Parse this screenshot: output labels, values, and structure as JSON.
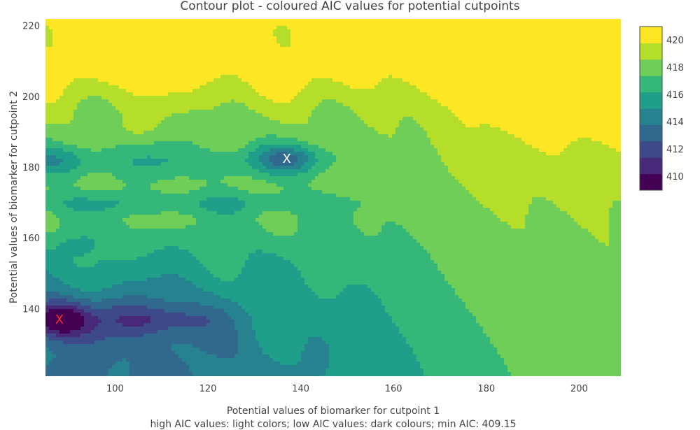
{
  "chart_data": {
    "type": "contour",
    "title": "Contour plot - coloured AIC values for potential cutpoints",
    "xlabel": "Potential values of biomarker for cutpoint 1",
    "subtitle": "high AIC values: light colors; low AIC values: dark colours; min AIC: 409.15",
    "ylabel": "Potential values of biomarker for cutpoint 2",
    "xlim": [
      85,
      209
    ],
    "ylim": [
      121,
      222
    ],
    "x_ticks": [
      100,
      120,
      140,
      160,
      180,
      200
    ],
    "y_ticks": [
      140,
      160,
      180,
      200,
      220
    ],
    "colorbar": {
      "range": [
        409,
        421
      ],
      "ticks": [
        410,
        412,
        414,
        416,
        418,
        420
      ],
      "colors": [
        "#440154",
        "#482878",
        "#3e4989",
        "#31688e",
        "#26828e",
        "#1f9e89",
        "#35b779",
        "#6ece58",
        "#b5de2b",
        "#fde725"
      ]
    },
    "minima": [
      {
        "x": 88,
        "y": 137,
        "label": "X",
        "color": "#ff2a2a"
      },
      {
        "x": 137,
        "y": 182.5,
        "label": "X",
        "color": "#ffffff"
      }
    ],
    "min_aic": 409.15
  }
}
